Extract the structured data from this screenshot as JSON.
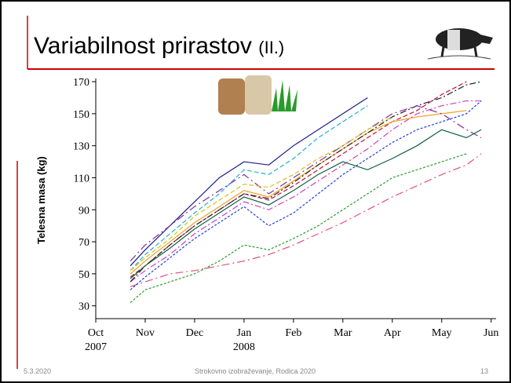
{
  "slide": {
    "title": "Variabilnost prirastov",
    "title_suffix": "(II.)",
    "date": "5.3.2020",
    "footer": "Strokovno izobraževanje, Rodica 2020",
    "page": "13"
  },
  "chart_data": {
    "type": "line",
    "y_label": "Telesna masa (kg)",
    "x": [
      0.7,
      1.0,
      1.5,
      2.0,
      2.5,
      3.0,
      3.5,
      4.0,
      4.5,
      5.0,
      5.5,
      6.0,
      6.5,
      7.0,
      7.5,
      7.8
    ],
    "xlim": [
      0,
      8.1
    ],
    "xticks": [
      {
        "value": 0,
        "label": "Oct",
        "sublabel": "2007"
      },
      {
        "value": 1,
        "label": "Nov"
      },
      {
        "value": 2,
        "label": "Dec"
      },
      {
        "value": 3,
        "label": "Jan",
        "sublabel": "2008"
      },
      {
        "value": 4,
        "label": "Feb"
      },
      {
        "value": 5,
        "label": "Mar"
      },
      {
        "value": 6,
        "label": "Apr"
      },
      {
        "value": 7,
        "label": "May"
      },
      {
        "value": 8,
        "label": "Jun"
      }
    ],
    "ylim": [
      22,
      172
    ],
    "yticks": [
      30,
      50,
      70,
      90,
      110,
      130,
      150,
      170
    ],
    "series": [
      {
        "color": "#1a1a8c",
        "values": [
          55,
          65,
          80,
          95,
          110,
          120,
          118,
          130,
          140,
          150,
          160,
          null,
          null,
          null,
          null,
          null
        ]
      },
      {
        "color": "#c0143c",
        "values": [
          48,
          55,
          68,
          80,
          90,
          100,
          96,
          105,
          115,
          125,
          135,
          145,
          152,
          162,
          170,
          null
        ]
      },
      {
        "color": "#d040c0",
        "values": [
          45,
          52,
          62,
          75,
          85,
          95,
          90,
          98,
          108,
          118,
          128,
          140,
          150,
          155,
          158,
          158
        ]
      },
      {
        "color": "#2e9a2e",
        "values": [
          32,
          40,
          45,
          50,
          58,
          68,
          65,
          72,
          80,
          90,
          100,
          110,
          115,
          120,
          125,
          null
        ]
      },
      {
        "color": "#e05080",
        "values": [
          42,
          45,
          50,
          52,
          55,
          58,
          62,
          68,
          75,
          82,
          90,
          98,
          105,
          112,
          118,
          125
        ]
      },
      {
        "color": "#f0a020",
        "values": [
          50,
          58,
          70,
          82,
          92,
          102,
          98,
          108,
          118,
          128,
          138,
          145,
          148,
          150,
          152,
          null
        ]
      },
      {
        "color": "#20b0d0",
        "values": [
          52,
          62,
          75,
          88,
          100,
          115,
          112,
          122,
          135,
          145,
          155,
          null,
          null,
          null,
          null,
          null
        ]
      },
      {
        "color": "#222222",
        "values": [
          45,
          55,
          68,
          80,
          90,
          100,
          97,
          107,
          118,
          128,
          138,
          148,
          155,
          160,
          168,
          170
        ]
      },
      {
        "color": "#2040e0",
        "values": [
          40,
          48,
          60,
          72,
          82,
          92,
          80,
          88,
          100,
          112,
          122,
          132,
          140,
          145,
          150,
          158
        ]
      },
      {
        "color": "#8030a0",
        "values": [
          58,
          68,
          80,
          92,
          102,
          112,
          100,
          110,
          120,
          130,
          140,
          150,
          155,
          150,
          140,
          135
        ]
      },
      {
        "color": "#106040",
        "values": [
          47,
          55,
          66,
          78,
          88,
          98,
          93,
          102,
          112,
          120,
          115,
          122,
          130,
          140,
          135,
          140
        ]
      },
      {
        "color": "#d8c020",
        "values": [
          52,
          60,
          72,
          86,
          96,
          106,
          104,
          112,
          122,
          130,
          140,
          148,
          null,
          null,
          null,
          null
        ]
      }
    ]
  }
}
